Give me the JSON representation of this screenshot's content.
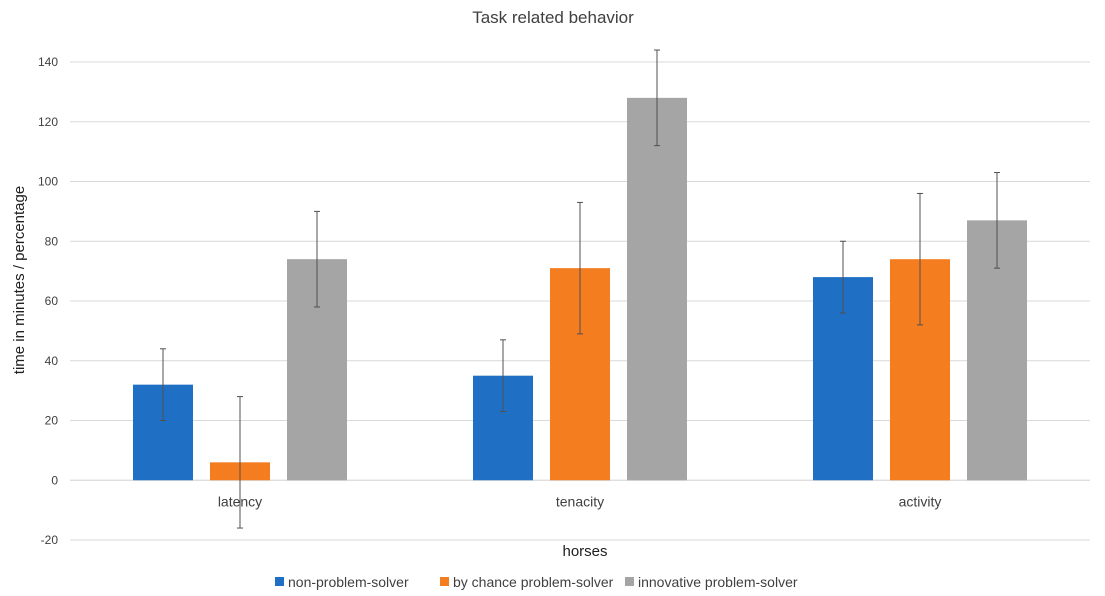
{
  "chart_data": {
    "type": "bar",
    "title": "Task related behavior",
    "xlabel": "horses",
    "ylabel": "time in minutes / percentage",
    "categories": [
      "latency",
      "tenacity",
      "activity"
    ],
    "ylim": [
      -20,
      140
    ],
    "yticks": [
      -20,
      0,
      20,
      40,
      60,
      80,
      100,
      120,
      140
    ],
    "grid": true,
    "legend_position": "bottom",
    "series": [
      {
        "name": "non-problem-solver",
        "color": "#1F6FC5",
        "values": [
          32,
          35,
          68
        ],
        "error": [
          12,
          12,
          12
        ]
      },
      {
        "name": "by chance problem-solver",
        "color": "#F47D20",
        "values": [
          6,
          71,
          74
        ],
        "error": [
          22,
          22,
          22
        ]
      },
      {
        "name": "innovative problem-solver",
        "color": "#A5A5A5",
        "values": [
          74,
          128,
          87
        ],
        "error": [
          16,
          16,
          16
        ]
      }
    ]
  }
}
